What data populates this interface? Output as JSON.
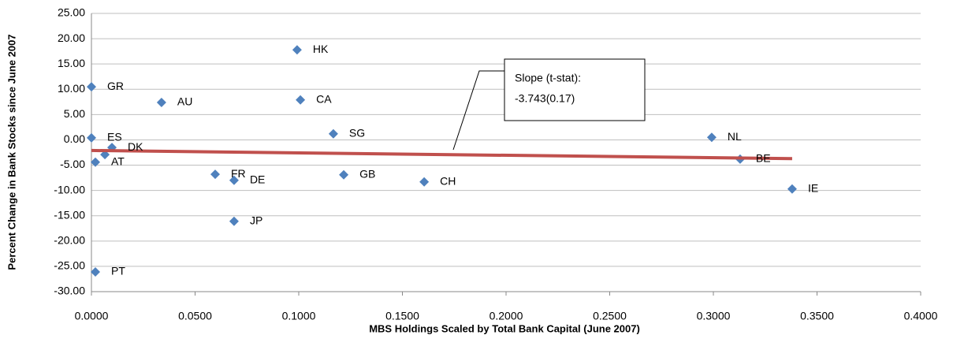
{
  "chart_data": {
    "type": "scatter",
    "x_label": "MBS Holdings Scaled by Total Bank Capital (June 2007)",
    "y_label": "Percent Change in Bank Stocks since June 2007",
    "x": [
      0.0992,
      0.0,
      0.0338,
      0.1008,
      0.1167,
      0.0,
      0.0099,
      0.0065,
      0.0019,
      0.0597,
      0.0688,
      0.1217,
      0.1605,
      0.2992,
      0.3129,
      0.338,
      0.0688,
      0.0019
    ],
    "values": [
      17.8,
      10.5,
      7.4,
      7.9,
      1.2,
      0.4,
      -1.5,
      -2.9,
      -4.4,
      -6.8,
      -8.0,
      -6.9,
      -8.3,
      0.5,
      -3.8,
      -9.7,
      -16.1,
      -26.1
    ],
    "point_labels": [
      "HK",
      "GR",
      "AU",
      "CA",
      "SG",
      "ES",
      "DK",
      null,
      "AT",
      "FR",
      "DE",
      "GB",
      "CH",
      "NL",
      "BE",
      "IE",
      "JP",
      "PT"
    ],
    "color": "#4f81bd",
    "trend": {
      "x": [
        0.0,
        0.338
      ],
      "values": [
        -2.1,
        -3.7
      ],
      "color": "#c0504d"
    },
    "annotation": [
      "Slope (t-stat):",
      "-3.743(0.17)"
    ],
    "xlim": [
      0,
      0.4
    ],
    "ylim": [
      -30,
      25
    ],
    "xticks": [
      {
        "value": 0,
        "label": "0.0000"
      },
      {
        "value": 0.05,
        "label": "0.0500"
      },
      {
        "value": 0.1,
        "label": "0.1000"
      },
      {
        "value": 0.15,
        "label": "0.1500"
      },
      {
        "value": 0.2,
        "label": "0.2000"
      },
      {
        "value": 0.25,
        "label": "0.2500"
      },
      {
        "value": 0.3,
        "label": "0.3000"
      },
      {
        "value": 0.35,
        "label": "0.3500"
      },
      {
        "value": 0.4,
        "label": "0.4000"
      }
    ],
    "yticks": [
      {
        "value": 25,
        "label": "25.00"
      },
      {
        "value": 20,
        "label": "20.00"
      },
      {
        "value": 15,
        "label": "15.00"
      },
      {
        "value": 10,
        "label": "10.00"
      },
      {
        "value": 5,
        "label": "5.00"
      },
      {
        "value": 0,
        "label": "0.00"
      },
      {
        "value": -5,
        "label": "-5.00"
      },
      {
        "value": -10,
        "label": "-10.00"
      },
      {
        "value": -15,
        "label": "-15.00"
      },
      {
        "value": -20,
        "label": "-20.00"
      },
      {
        "value": -25,
        "label": "-25.00"
      },
      {
        "value": -30,
        "label": "-30.00"
      }
    ],
    "grid": true
  }
}
